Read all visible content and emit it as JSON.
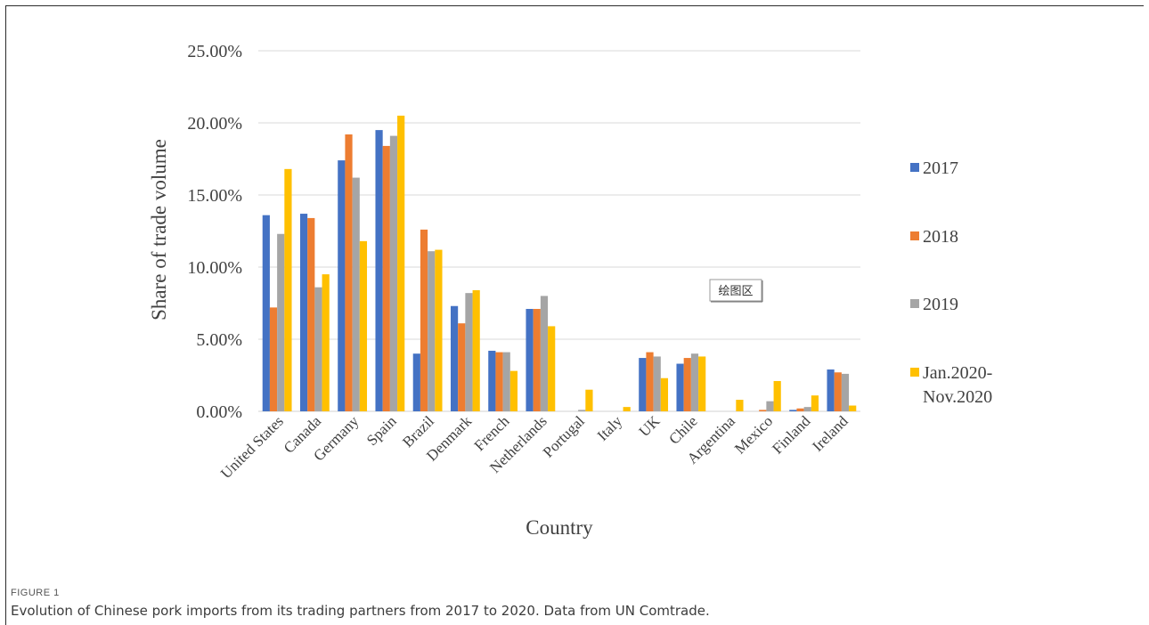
{
  "colors": {
    "series": [
      "#4472c4",
      "#ed7d31",
      "#a5a5a5",
      "#ffc000"
    ],
    "grid": "#d9d9d9",
    "axis": "#d0d0d0",
    "text": "#404040"
  },
  "chart_data": {
    "type": "bar",
    "ylabel": "Share of trade volume",
    "xlabel": "Country",
    "ylim": [
      0,
      25
    ],
    "y_ticks": [
      "0.00%",
      "5.00%",
      "10.00%",
      "15.00%",
      "20.00%",
      "25.00%"
    ],
    "grid": true,
    "legend_position": "right",
    "categories": [
      "United States",
      "Canada",
      "Germany",
      "Spain",
      "Brazil",
      "Denmark",
      "French",
      "Netherlands",
      "Portugal",
      "Italy",
      "UK",
      "Chile",
      "Argentina",
      "Mexico",
      "Finland",
      "Ireland"
    ],
    "series": [
      {
        "name": "2017",
        "values": [
          13.6,
          13.7,
          17.4,
          19.5,
          4.0,
          7.3,
          4.2,
          7.1,
          0.0,
          0.0,
          3.7,
          3.3,
          0.0,
          0.0,
          0.1,
          2.9
        ]
      },
      {
        "name": "2018",
        "values": [
          7.2,
          13.4,
          19.2,
          18.4,
          12.6,
          6.1,
          4.1,
          7.1,
          0.0,
          0.0,
          4.1,
          3.7,
          0.0,
          0.1,
          0.2,
          2.7
        ]
      },
      {
        "name": "2019",
        "values": [
          12.3,
          8.6,
          16.2,
          19.1,
          11.1,
          8.2,
          4.1,
          8.0,
          0.1,
          0.0,
          3.8,
          4.0,
          0.0,
          0.7,
          0.3,
          2.6
        ]
      },
      {
        "name": "Jan.2020-\nNov.2020",
        "values": [
          16.8,
          9.5,
          11.8,
          20.5,
          11.2,
          8.4,
          2.8,
          5.9,
          1.5,
          0.3,
          2.3,
          3.8,
          0.8,
          2.1,
          1.1,
          0.4
        ]
      }
    ],
    "annotation": "绘图区"
  },
  "caption": {
    "label": "FIGURE 1",
    "text": "Evolution of Chinese pork imports from its trading partners from 2017 to 2020. Data from UN Comtrade."
  }
}
